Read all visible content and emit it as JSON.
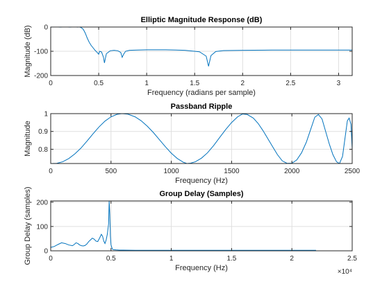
{
  "colors": {
    "series": "#0072bd",
    "grid": "#dfdfdf",
    "axis": "#262626"
  },
  "chart_data": [
    {
      "type": "line",
      "title": "Elliptic Magnitude Response (dB)",
      "xlabel": "Frequency (radians per sample)",
      "ylabel": "Magnitude (dB)",
      "xlim": [
        0,
        3.1416
      ],
      "ylim": [
        -200,
        0
      ],
      "xticks": [
        0,
        0.5,
        1,
        1.5,
        2,
        2.5,
        3
      ],
      "xtick_labels": [
        "0",
        "0.5",
        "1",
        "1.5",
        "2",
        "2.5",
        "3"
      ],
      "yticks": [
        0,
        -100,
        -200
      ],
      "ytick_labels": [
        "0",
        "-100",
        "-200"
      ],
      "exponent": "",
      "grid": true,
      "series": [
        {
          "x": [
            0,
            0.05,
            0.1,
            0.15,
            0.2,
            0.25,
            0.28,
            0.3,
            0.32,
            0.34,
            0.36,
            0.38,
            0.4,
            0.42,
            0.44,
            0.46,
            0.48,
            0.5,
            0.51,
            0.53,
            0.55,
            0.56,
            0.58,
            0.62,
            0.66,
            0.7,
            0.73,
            0.745,
            0.76,
            0.78,
            0.82,
            0.9,
            1.0,
            1.2,
            1.4,
            1.55,
            1.62,
            1.645,
            1.67,
            1.72,
            1.8,
            2.0,
            2.3,
            2.6,
            2.9,
            3.1416
          ],
          "y": [
            -0.5,
            0.5,
            -0.5,
            0.5,
            -0.5,
            0.5,
            -0.5,
            0.3,
            -3,
            -10,
            -25,
            -45,
            -62,
            -75,
            -85,
            -95,
            -103,
            -112,
            -100,
            -103,
            -125,
            -148,
            -110,
            -98,
            -96,
            -98,
            -105,
            -125,
            -112,
            -100,
            -96,
            -95,
            -94,
            -94,
            -96,
            -102,
            -120,
            -162,
            -118,
            -101,
            -97,
            -96,
            -95,
            -95,
            -95,
            -95
          ]
        }
      ]
    },
    {
      "type": "line",
      "title": "Passband Ripple",
      "xlabel": "Frequency (Hz)",
      "ylabel": "Magnitude",
      "xlim": [
        0,
        2500
      ],
      "ylim": [
        0.72,
        1.0
      ],
      "xticks": [
        0,
        500,
        1000,
        1500,
        2000,
        2500
      ],
      "xtick_labels": [
        "0",
        "500",
        "1000",
        "1500",
        "2000",
        "2500"
      ],
      "yticks": [
        1.0,
        0.9,
        0.8
      ],
      "ytick_labels": [
        "1",
        "0.9",
        "0.8"
      ],
      "exponent": "",
      "grid": true,
      "series": [
        {
          "x": [
            0,
            50,
            100,
            150,
            200,
            250,
            300,
            350,
            400,
            450,
            500,
            550,
            590,
            640,
            700,
            750,
            800,
            850,
            900,
            950,
            1000,
            1050,
            1100,
            1130,
            1160,
            1200,
            1250,
            1300,
            1350,
            1400,
            1450,
            1500,
            1550,
            1590,
            1630,
            1680,
            1720,
            1760,
            1800,
            1840,
            1880,
            1920,
            1960,
            2000,
            2040,
            2080,
            2120,
            2160,
            2190,
            2220,
            2250,
            2280,
            2310,
            2340,
            2370,
            2395,
            2420,
            2440,
            2460,
            2475,
            2490,
            2500
          ],
          "y": [
            0.72,
            0.721,
            0.73,
            0.748,
            0.774,
            0.806,
            0.845,
            0.886,
            0.925,
            0.958,
            0.982,
            0.996,
            1.0,
            0.997,
            0.982,
            0.96,
            0.93,
            0.895,
            0.855,
            0.815,
            0.778,
            0.748,
            0.727,
            0.72,
            0.722,
            0.73,
            0.75,
            0.78,
            0.82,
            0.865,
            0.91,
            0.95,
            0.982,
            0.998,
            0.995,
            0.975,
            0.945,
            0.905,
            0.86,
            0.815,
            0.77,
            0.735,
            0.721,
            0.722,
            0.74,
            0.78,
            0.84,
            0.92,
            0.98,
            0.995,
            0.97,
            0.9,
            0.83,
            0.77,
            0.73,
            0.72,
            0.76,
            0.86,
            0.96,
            0.975,
            0.94,
            0.8
          ]
        }
      ]
    },
    {
      "type": "line",
      "title": "Group Delay (Samples)",
      "xlabel": "Frequency (Hz)",
      "ylabel": "Group Delay (samples)",
      "xlim": [
        0,
        25000
      ],
      "ylim": [
        0,
        205
      ],
      "xticks": [
        0,
        5000,
        10000,
        15000,
        20000,
        25000
      ],
      "xtick_labels": [
        "0",
        "0.5",
        "1",
        "1.5",
        "2",
        "2.5"
      ],
      "yticks": [
        0,
        100,
        200
      ],
      "ytick_labels": [
        "0",
        "100",
        "200"
      ],
      "exponent": "×10⁴",
      "grid": true,
      "series": [
        {
          "x": [
            0,
            300,
            600,
            900,
            1200,
            1500,
            1800,
            1950,
            2100,
            2250,
            2400,
            2550,
            2700,
            2850,
            3000,
            3150,
            3300,
            3450,
            3600,
            3750,
            3900,
            4050,
            4200,
            4300,
            4400,
            4500,
            4600,
            4700,
            4800,
            4850,
            4900,
            4950,
            5000,
            5100,
            5200,
            5400,
            5700,
            6000,
            7000,
            9000,
            12000,
            16000,
            20000,
            22000
          ],
          "y": [
            14,
            18,
            26,
            33,
            30,
            24,
            21,
            26,
            33,
            30,
            24,
            21,
            20,
            22,
            28,
            38,
            45,
            52,
            48,
            40,
            38,
            52,
            68,
            60,
            40,
            30,
            45,
            70,
            110,
            205,
            150,
            60,
            25,
            8,
            5,
            4,
            3,
            3,
            2,
            2,
            2,
            2,
            2,
            2
          ]
        }
      ]
    }
  ]
}
